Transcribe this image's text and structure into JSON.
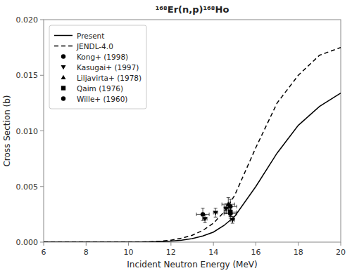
{
  "chart_data": {
    "type": "line",
    "title": "¹⁶⁸Er(n,p)¹⁶⁸Ho",
    "x_label": "Incident Neutron Energy (MeV)",
    "y_label": "Cross Section (b)",
    "xlim": [
      6,
      20
    ],
    "ylim": [
      0.0,
      0.02
    ],
    "xticks": [
      6,
      8,
      10,
      12,
      14,
      16,
      18,
      20
    ],
    "yticks": [
      {
        "value": 0.0,
        "label": "0.000"
      },
      0.005,
      {
        "value": 0.01,
        "label": "0.010"
      },
      0.015,
      {
        "value": 0.02,
        "label": "0.020"
      }
    ],
    "grid": false,
    "legend": "upper left",
    "series": [
      {
        "name": "Present",
        "type": "line",
        "line_style": "solid",
        "color": "#000000",
        "x": [
          6.0,
          7.0,
          8.0,
          9.0,
          9.5,
          10.0,
          10.2,
          10.5,
          11.0,
          11.5,
          12.0,
          12.5,
          13.0,
          13.5,
          14.0,
          14.5,
          15.0,
          16.0,
          17.0,
          18.0,
          19.0,
          20.0
        ],
        "values": [
          0.0,
          0.0,
          0.0,
          0.0,
          0.0,
          1e-06,
          2e-06,
          5e-06,
          1.5e-05,
          4e-05,
          9e-05,
          0.00018,
          0.00032,
          0.00055,
          0.0009,
          0.0015,
          0.0023,
          0.005,
          0.008,
          0.0105,
          0.0122,
          0.0134
        ]
      },
      {
        "name": "JENDL-4.0",
        "type": "line",
        "line_style": "dashed",
        "color": "#000000",
        "x": [
          6.0,
          7.0,
          8.0,
          9.0,
          9.5,
          10.0,
          10.2,
          10.5,
          11.0,
          11.5,
          12.0,
          12.5,
          13.0,
          13.5,
          14.0,
          14.5,
          15.0,
          16.0,
          17.0,
          18.0,
          19.0,
          20.0
        ],
        "values": [
          0.0,
          0.0,
          0.0,
          0.0,
          0.0,
          2e-06,
          4e-06,
          1e-05,
          3e-05,
          8e-05,
          0.00018,
          0.00035,
          0.00062,
          0.00105,
          0.0017,
          0.0027,
          0.0042,
          0.0085,
          0.0125,
          0.015,
          0.0168,
          0.0175
        ]
      },
      {
        "name": "Kong+ (1998)",
        "type": "scatter",
        "marker": "circle",
        "color": "#000000",
        "x": [
          13.5,
          14.8
        ],
        "values": [
          0.0025,
          0.0032
        ],
        "xerr": [
          0.3,
          0.3
        ],
        "yerr": [
          0.00055,
          0.00065
        ]
      },
      {
        "name": "Kasugai+ (1997)",
        "type": "scatter",
        "marker": "triangle-down",
        "color": "#000000",
        "x": [
          13.6,
          14.1,
          14.6,
          14.9
        ],
        "values": [
          0.0021,
          0.00265,
          0.003,
          0.002
        ],
        "xerr": [
          0.1,
          0.1,
          0.1,
          0.1
        ],
        "yerr": [
          0.00035,
          0.0004,
          0.00045,
          0.0003
        ]
      },
      {
        "name": "Liljavirta+ (1978)",
        "type": "scatter",
        "marker": "triangle-up",
        "color": "#000000",
        "x": [
          14.7
        ],
        "values": [
          0.0034
        ],
        "xerr": [
          0.3
        ],
        "yerr": [
          0.0006
        ]
      },
      {
        "name": "Qaim (1976)",
        "type": "scatter",
        "marker": "square",
        "color": "#000000",
        "x": [
          14.8
        ],
        "values": [
          0.0027
        ],
        "xerr": [
          0.3
        ],
        "yerr": [
          0.0004
        ]
      },
      {
        "name": "Wille+ (1960)",
        "type": "scatter",
        "marker": "circle",
        "color": "#000000",
        "x": [
          14.8
        ],
        "values": [
          0.00255
        ],
        "xerr": [
          0.3
        ],
        "yerr": [
          0.0004
        ]
      }
    ]
  }
}
